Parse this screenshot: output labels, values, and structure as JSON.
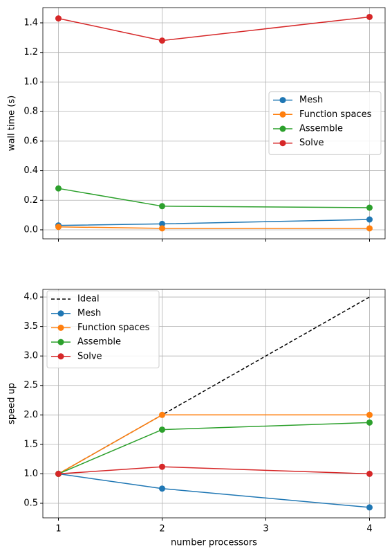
{
  "chart_data": [
    {
      "type": "line",
      "ylabel": "wall time (s)",
      "x": [
        1,
        2,
        4
      ],
      "xlim": [
        0.85,
        4.15
      ],
      "xticks": [
        1,
        2,
        3,
        4
      ],
      "ylim": [
        -0.061,
        1.503
      ],
      "yticks": [
        {
          "value": 0,
          "label": "0.0"
        },
        {
          "value": 0.2,
          "label": "0.2"
        },
        {
          "value": 0.4,
          "label": "0.4"
        },
        {
          "value": 0.6,
          "label": "0.6"
        },
        {
          "value": 0.8,
          "label": "0.8"
        },
        {
          "value": 1,
          "label": "1.0"
        },
        {
          "value": 1.2,
          "label": "1.2"
        },
        {
          "value": 1.4,
          "label": "1.4"
        }
      ],
      "grid": true,
      "legend": "center right",
      "series": [
        {
          "name": "Mesh",
          "color": "#1f77b4",
          "values": [
            0.03,
            0.04,
            0.07
          ]
        },
        {
          "name": "Function spaces",
          "color": "#ff7f0e",
          "values": [
            0.02,
            0.01,
            0.01
          ]
        },
        {
          "name": "Assemble",
          "color": "#2ca02c",
          "values": [
            0.28,
            0.16,
            0.15
          ]
        },
        {
          "name": "Solve",
          "color": "#d62728",
          "values": [
            1.43,
            1.28,
            1.44
          ]
        }
      ]
    },
    {
      "type": "line",
      "xlabel": "number processors",
      "ylabel": "speed up",
      "x": [
        1,
        2,
        4
      ],
      "xlim": [
        0.85,
        4.15
      ],
      "xticks": [
        1,
        2,
        3,
        4
      ],
      "ylim": [
        0.253,
        4.13
      ],
      "yticks": [
        0.5,
        {
          "value": 1,
          "label": "1.0"
        },
        1.5,
        {
          "value": 2,
          "label": "2.0"
        },
        2.5,
        {
          "value": 3,
          "label": "3.0"
        },
        3.5,
        {
          "value": 4,
          "label": "4.0"
        }
      ],
      "grid": true,
      "legend": "upper left",
      "series": [
        {
          "name": "Ideal",
          "color": "#000000",
          "linestyle": "dashed",
          "values": [
            1,
            2,
            4
          ]
        },
        {
          "name": "Mesh",
          "color": "#1f77b4",
          "marker": "circle",
          "values": [
            1,
            0.75,
            0.43
          ]
        },
        {
          "name": "Function spaces",
          "color": "#ff7f0e",
          "marker": "circle",
          "values": [
            1,
            2,
            2
          ]
        },
        {
          "name": "Assemble",
          "color": "#2ca02c",
          "marker": "circle",
          "values": [
            1,
            1.75,
            1.87
          ]
        },
        {
          "name": "Solve",
          "color": "#d62728",
          "marker": "circle",
          "values": [
            1,
            1.12,
            1.0
          ]
        }
      ]
    }
  ]
}
